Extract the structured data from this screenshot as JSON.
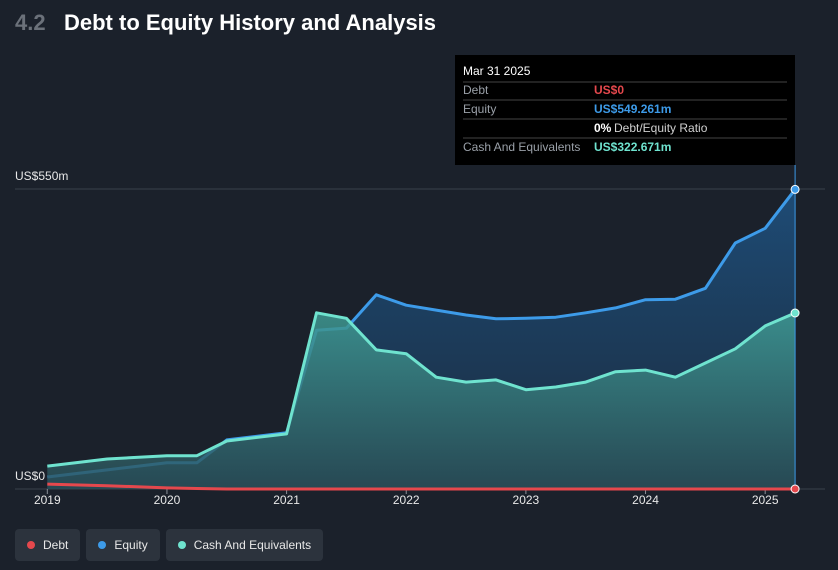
{
  "chart_data": {
    "type": "area",
    "section": "4.2",
    "title": "Debt to Equity History and Analysis",
    "x": [
      2019,
      2019.5,
      2020,
      2020.25,
      2020.5,
      2021,
      2021.25,
      2021.5,
      2021.75,
      2022,
      2022.25,
      2022.5,
      2022.75,
      2023,
      2023.25,
      2023.5,
      2023.75,
      2024,
      2024.25,
      2024.5,
      2024.75,
      2025,
      2025.25
    ],
    "series": [
      {
        "name": "Debt",
        "color": "#e5484d",
        "fill": false,
        "values": [
          9,
          6,
          2,
          1,
          0,
          0,
          0,
          0,
          0,
          0,
          0,
          0,
          0,
          0,
          0,
          0,
          0,
          0,
          0,
          0,
          0,
          0,
          0
        ]
      },
      {
        "name": "Equity",
        "color": "#3d9be9",
        "fill": true,
        "values": [
          22,
          35,
          48,
          48,
          90,
          103,
          291,
          295,
          356,
          337,
          328,
          319,
          312,
          313,
          315,
          323,
          332,
          347,
          348,
          368,
          451,
          478,
          549.261
        ]
      },
      {
        "name": "Cash And Equivalents",
        "color": "#6fe3cf",
        "fill": true,
        "values": [
          42,
          55,
          61,
          61,
          88,
          101,
          323,
          313,
          255,
          248,
          205,
          196,
          200,
          182,
          187,
          196,
          215,
          218,
          205,
          231,
          257,
          299,
          322.671
        ]
      }
    ],
    "xlim": [
      2018.73,
      2025.5
    ],
    "xticks": [
      2019,
      2020,
      2021,
      2022,
      2023,
      2024,
      2025
    ],
    "ylim": [
      0,
      550
    ],
    "yticks": [
      {
        "value": 0,
        "label": "US$0"
      },
      {
        "value": 550,
        "label": "US$550m"
      }
    ],
    "grid": true,
    "tooltip": {
      "date": "Mar 31 2025",
      "rows": [
        {
          "label": "Debt",
          "value": "US$0"
        },
        {
          "label": "Equity",
          "value": "US$549.261m"
        }
      ],
      "ratio": "0%",
      "ratio_label": "Debt/Equity Ratio",
      "cash": {
        "label": "Cash And Equivalents",
        "value": "US$322.671m"
      }
    }
  }
}
